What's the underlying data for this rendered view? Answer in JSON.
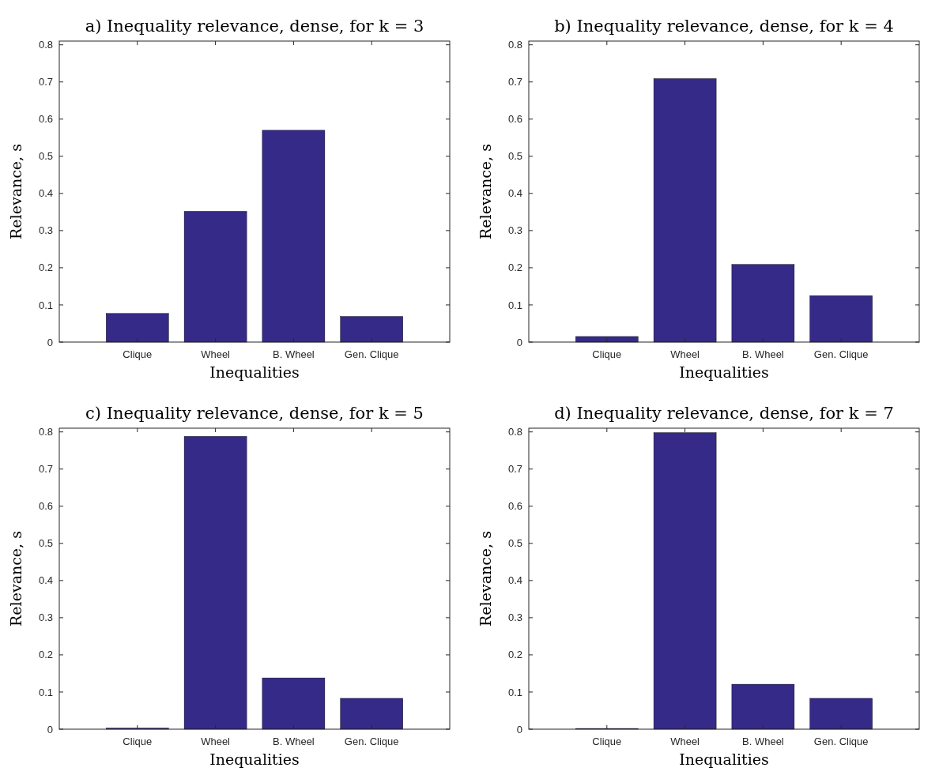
{
  "chart_data": [
    {
      "type": "bar",
      "title": "a) Inequality relevance, dense, for k = 3",
      "xlabel": "Inequalities",
      "ylabel": "Relevance, s",
      "categories": [
        "Clique",
        "Wheel",
        "B. Wheel",
        "Gen. Clique"
      ],
      "values": [
        0.077,
        0.352,
        0.57,
        0.069
      ],
      "color": "#352a87",
      "ylim": [
        0,
        0.81
      ],
      "yticks": [
        0,
        0.1,
        0.2,
        0.3,
        0.4,
        0.5,
        0.6,
        0.7,
        0.8
      ]
    },
    {
      "type": "bar",
      "title": "b) Inequality relevance, dense, for k = 4",
      "xlabel": "Inequalities",
      "ylabel": "Relevance, s",
      "categories": [
        "Clique",
        "Wheel",
        "B. Wheel",
        "Gen. Clique"
      ],
      "values": [
        0.015,
        0.709,
        0.209,
        0.125
      ],
      "color": "#352a87",
      "ylim": [
        0,
        0.81
      ],
      "yticks": [
        0,
        0.1,
        0.2,
        0.3,
        0.4,
        0.5,
        0.6,
        0.7,
        0.8
      ]
    },
    {
      "type": "bar",
      "title": "c) Inequality relevance, dense, for k = 5",
      "xlabel": "Inequalities",
      "ylabel": "Relevance, s",
      "categories": [
        "Clique",
        "Wheel",
        "B. Wheel",
        "Gen. Clique"
      ],
      "values": [
        0.003,
        0.788,
        0.138,
        0.083
      ],
      "color": "#352a87",
      "ylim": [
        0,
        0.81
      ],
      "yticks": [
        0,
        0.1,
        0.2,
        0.3,
        0.4,
        0.5,
        0.6,
        0.7,
        0.8
      ]
    },
    {
      "type": "bar",
      "title": "d) Inequality relevance, dense, for k = 7",
      "xlabel": "Inequalities",
      "ylabel": "Relevance, s",
      "categories": [
        "Clique",
        "Wheel",
        "B. Wheel",
        "Gen. Clique"
      ],
      "values": [
        0.002,
        0.798,
        0.121,
        0.083
      ],
      "color": "#352a87",
      "ylim": [
        0,
        0.81
      ],
      "yticks": [
        0,
        0.1,
        0.2,
        0.3,
        0.4,
        0.5,
        0.6,
        0.7,
        0.8
      ]
    }
  ]
}
